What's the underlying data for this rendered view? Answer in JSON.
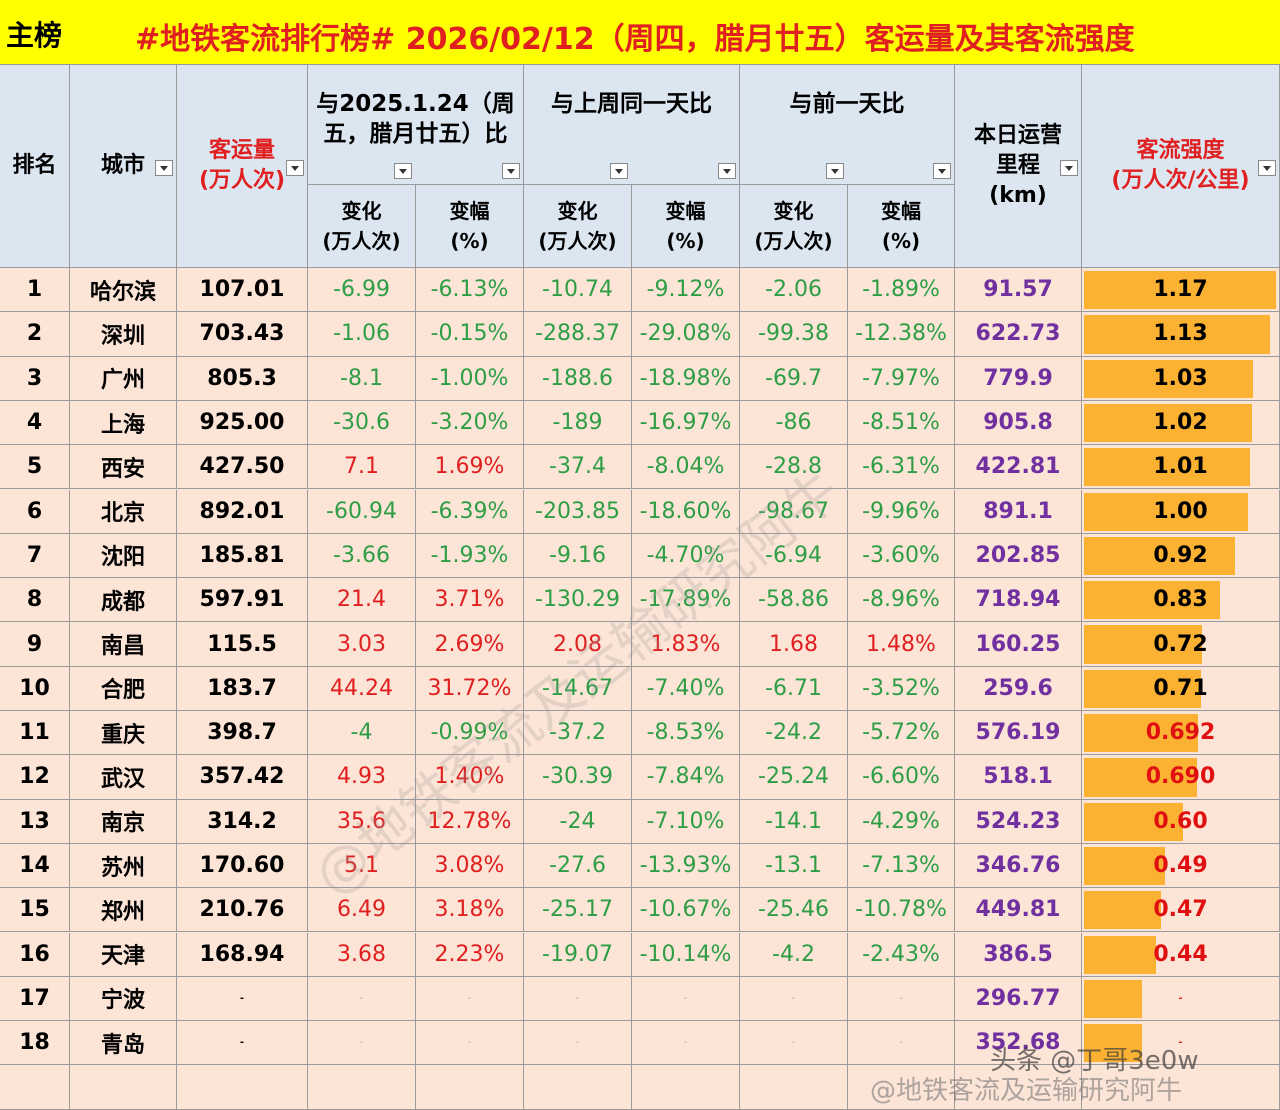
{
  "header": {
    "tag": "主榜",
    "title": "#地铁客流排行榜# 2026/02/12（周四，腊月廿五）客运量及其客流强度"
  },
  "table": {
    "columns": [
      "排名",
      "城市",
      "客运量\n(万人次)",
      "本日运营\n里程\n(km)",
      "客流强度\n(万人次/公里)"
    ],
    "groups": [
      "与2025.1.24（周\n五，腊月廿五）比",
      "与上周同一天比",
      "与前一天比"
    ],
    "subheaders": [
      "变化\n(万人次)",
      "变幅\n(%)",
      "变化\n(万人次)",
      "变幅\n(%)",
      "变化\n(万人次)",
      "变幅\n(%)"
    ],
    "rows": [
      [
        "1",
        "哈尔滨",
        "107.01",
        "-6.99",
        "-6.13%",
        "-10.74",
        "-9.12%",
        "-2.06",
        "-1.89%",
        "91.57",
        "1.17"
      ],
      [
        "2",
        "深圳",
        "703.43",
        "-1.06",
        "-0.15%",
        "-288.37",
        "-29.08%",
        "-99.38",
        "-12.38%",
        "622.73",
        "1.13"
      ],
      [
        "3",
        "广州",
        "805.3",
        "-8.1",
        "-1.00%",
        "-188.6",
        "-18.98%",
        "-69.7",
        "-7.97%",
        "779.9",
        "1.03"
      ],
      [
        "4",
        "上海",
        "925.00",
        "-30.6",
        "-3.20%",
        "-189",
        "-16.97%",
        "-86",
        "-8.51%",
        "905.8",
        "1.02"
      ],
      [
        "5",
        "西安",
        "427.50",
        "7.1",
        "1.69%",
        "-37.4",
        "-8.04%",
        "-28.8",
        "-6.31%",
        "422.81",
        "1.01"
      ],
      [
        "6",
        "北京",
        "892.01",
        "-60.94",
        "-6.39%",
        "-203.85",
        "-18.60%",
        "-98.67",
        "-9.96%",
        "891.1",
        "1.00"
      ],
      [
        "7",
        "沈阳",
        "185.81",
        "-3.66",
        "-1.93%",
        "-9.16",
        "-4.70%",
        "-6.94",
        "-3.60%",
        "202.85",
        "0.92"
      ],
      [
        "8",
        "成都",
        "597.91",
        "21.4",
        "3.71%",
        "-130.29",
        "-17.89%",
        "-58.86",
        "-8.96%",
        "718.94",
        "0.83"
      ],
      [
        "9",
        "南昌",
        "115.5",
        "3.03",
        "2.69%",
        "2.08",
        "1.83%",
        "1.68",
        "1.48%",
        "160.25",
        "0.72"
      ],
      [
        "10",
        "合肥",
        "183.7",
        "44.24",
        "31.72%",
        "-14.67",
        "-7.40%",
        "-6.71",
        "-3.52%",
        "259.6",
        "0.71"
      ],
      [
        "11",
        "重庆",
        "398.7",
        "-4",
        "-0.99%",
        "-37.2",
        "-8.53%",
        "-24.2",
        "-5.72%",
        "576.19",
        "0.692"
      ],
      [
        "12",
        "武汉",
        "357.42",
        "4.93",
        "1.40%",
        "-30.39",
        "-7.84%",
        "-25.24",
        "-6.60%",
        "518.1",
        "0.690"
      ],
      [
        "13",
        "南京",
        "314.2",
        "35.6",
        "12.78%",
        "-24",
        "-7.10%",
        "-14.1",
        "-4.29%",
        "524.23",
        "0.60"
      ],
      [
        "14",
        "苏州",
        "170.60",
        "5.1",
        "3.08%",
        "-27.6",
        "-13.93%",
        "-13.1",
        "-7.13%",
        "346.76",
        "0.49"
      ],
      [
        "15",
        "郑州",
        "210.76",
        "6.49",
        "3.18%",
        "-25.17",
        "-10.67%",
        "-25.46",
        "-10.78%",
        "449.81",
        "0.47"
      ],
      [
        "16",
        "天津",
        "168.94",
        "3.68",
        "2.23%",
        "-19.07",
        "-10.14%",
        "-4.2",
        "-2.43%",
        "386.5",
        "0.44"
      ],
      [
        "17",
        "宁波",
        "-",
        "-",
        "-",
        "-",
        "-",
        "-",
        "-",
        "296.77",
        "-"
      ],
      [
        "18",
        "青岛",
        "-",
        "-",
        "-",
        "-",
        "-",
        "-",
        "-",
        "352.68",
        "-"
      ]
    ],
    "intensity_colors": [
      "#000",
      "#000",
      "#000",
      "#000",
      "#000",
      "#000",
      "#000",
      "#000",
      "#000",
      "#000",
      "#e01010",
      "#e01010",
      "#e01010",
      "#e01010",
      "#e01010",
      "#e01010",
      "#e01010",
      "#e01010"
    ]
  },
  "watermarks": {
    "diagonal": "@地铁客流及运输研究阿牛",
    "toutiao": "头条 @丁哥3e0w",
    "weibo": "@地铁客流及运输研究阿牛"
  }
}
